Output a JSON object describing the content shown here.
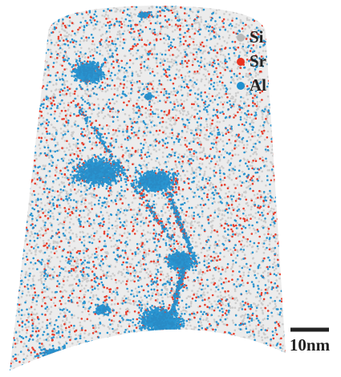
{
  "legend": {
    "items": [
      {
        "label": "Si",
        "color": "#b8b8b8"
      },
      {
        "label": "Sr",
        "color": "#e8321f"
      },
      {
        "label": "Al",
        "color": "#1f8fcf"
      }
    ]
  },
  "scale_bar": {
    "label": "10nm"
  }
}
